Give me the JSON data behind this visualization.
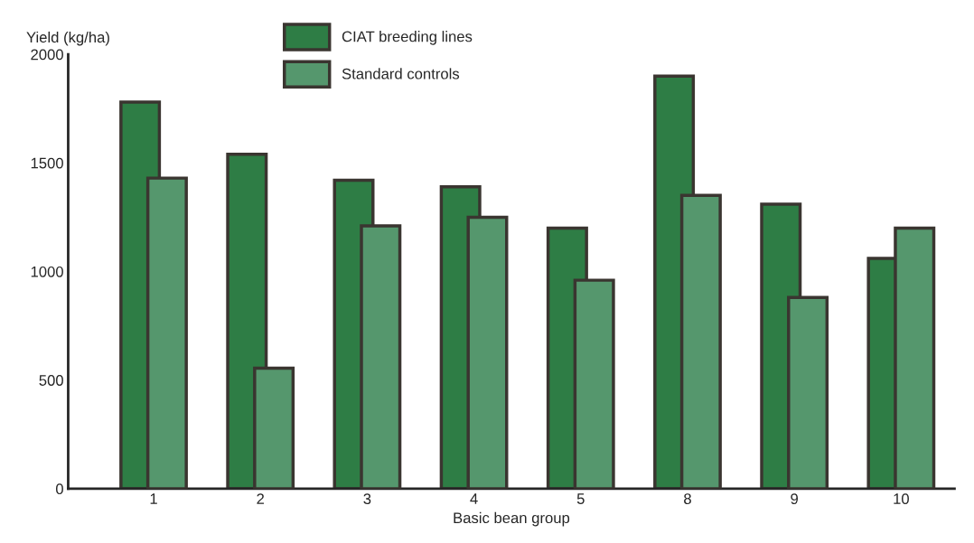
{
  "chart_data": {
    "type": "bar",
    "ylabel": "Yield (kg/ha)",
    "xlabel": "Basic bean group",
    "categories": [
      "1",
      "2",
      "3",
      "4",
      "5",
      "8",
      "9",
      "10"
    ],
    "series": [
      {
        "name": "CIAT breeding lines",
        "color": "#2e7d45",
        "values": [
          1780,
          1540,
          1420,
          1390,
          1200,
          1900,
          1310,
          1060
        ]
      },
      {
        "name": "Standard controls",
        "color": "#55976d",
        "values": [
          1430,
          555,
          1210,
          1250,
          960,
          1350,
          880,
          1200
        ]
      }
    ],
    "ylim": [
      0,
      2000
    ],
    "yticks": [
      0,
      500,
      1000,
      1500,
      2000
    ],
    "grid": false,
    "legend": "top"
  }
}
